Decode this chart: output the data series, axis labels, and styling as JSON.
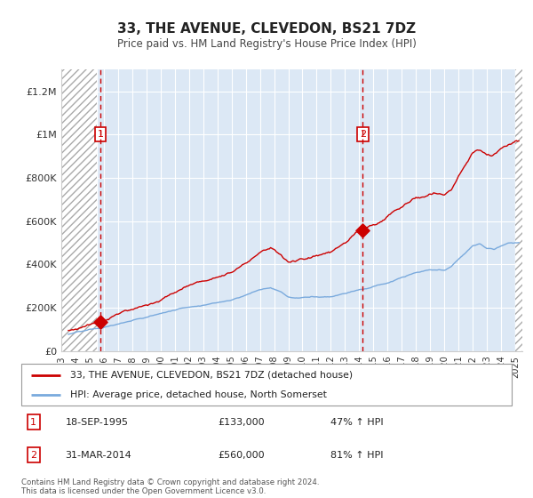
{
  "title": "33, THE AVENUE, CLEVEDON, BS21 7DZ",
  "subtitle": "Price paid vs. HM Land Registry's House Price Index (HPI)",
  "legend_line1": "33, THE AVENUE, CLEVEDON, BS21 7DZ (detached house)",
  "legend_line2": "HPI: Average price, detached house, North Somerset",
  "sale1_date": "18-SEP-1995",
  "sale1_price": "£133,000",
  "sale1_hpi": "47% ↑ HPI",
  "sale2_date": "31-MAR-2014",
  "sale2_price": "£560,000",
  "sale2_hpi": "81% ↑ HPI",
  "footer": "Contains HM Land Registry data © Crown copyright and database right 2024.\nThis data is licensed under the Open Government Licence v3.0.",
  "red_color": "#cc0000",
  "blue_color": "#7aaadd",
  "bg_fill_color": "#dce8f5",
  "hatch_color": "#bbbbbb",
  "sale1_year": 1995.75,
  "sale1_value": 133000,
  "sale2_year": 2014.25,
  "sale2_value": 560000,
  "ylim": [
    0,
    1300000
  ],
  "xlim_start": 1993.0,
  "xlim_end": 2025.5
}
